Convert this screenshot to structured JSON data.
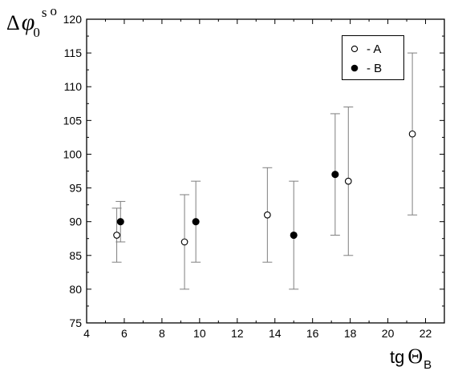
{
  "chart_data": {
    "type": "scatter",
    "xlabel": {
      "base": "tg",
      "symbol": "Θ",
      "subscript": "B"
    },
    "ylabel": {
      "delta": "Δ",
      "phi": "φ",
      "subscript": "0",
      "superscript": "s",
      "degree": "o"
    },
    "xlim": [
      4,
      23
    ],
    "ylim": [
      75,
      120
    ],
    "xticks": [
      4,
      6,
      8,
      10,
      12,
      14,
      16,
      18,
      20,
      22
    ],
    "yticks": [
      75,
      80,
      85,
      90,
      95,
      100,
      105,
      110,
      115,
      120
    ],
    "grid": false,
    "legend_position": "top-right",
    "series": [
      {
        "name": "- A",
        "marker": "open-circle",
        "color": "#000000",
        "points": [
          {
            "x": 5.6,
            "y": 88,
            "ylow": 84,
            "yhigh": 92
          },
          {
            "x": 9.2,
            "y": 87,
            "ylow": 80,
            "yhigh": 94
          },
          {
            "x": 13.6,
            "y": 91,
            "ylow": 84,
            "yhigh": 98
          },
          {
            "x": 17.9,
            "y": 96,
            "ylow": 85,
            "yhigh": 107
          },
          {
            "x": 21.3,
            "y": 103,
            "ylow": 91,
            "yhigh": 115
          }
        ]
      },
      {
        "name": "- B",
        "marker": "filled-circle",
        "color": "#000000",
        "points": [
          {
            "x": 5.8,
            "y": 90,
            "ylow": 87,
            "yhigh": 93
          },
          {
            "x": 9.8,
            "y": 90,
            "ylow": 84,
            "yhigh": 96
          },
          {
            "x": 15.0,
            "y": 88,
            "ylow": 80,
            "yhigh": 96
          },
          {
            "x": 17.2,
            "y": 97,
            "ylow": 88,
            "yhigh": 106
          }
        ]
      }
    ],
    "error_bar_color": "#7f7f7f"
  }
}
